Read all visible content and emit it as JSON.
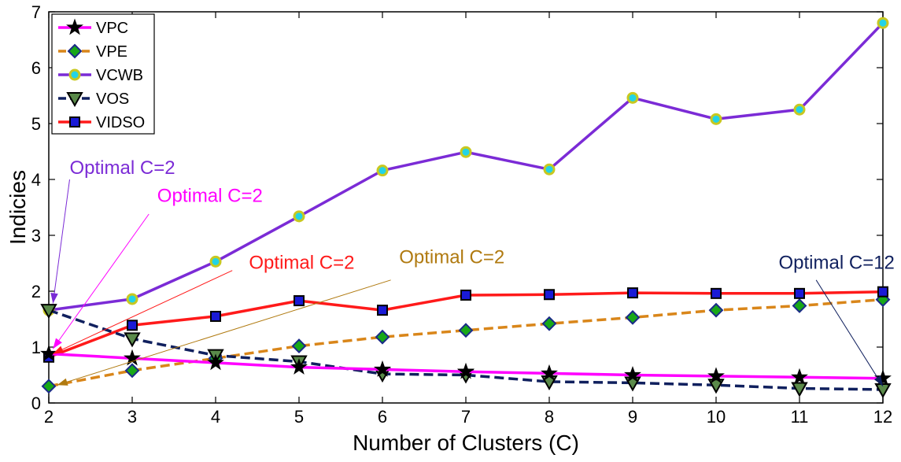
{
  "chart_data": {
    "type": "line",
    "xlabel": "Number of Clusters (C)",
    "ylabel": "Indicies",
    "xlim": [
      2,
      12
    ],
    "ylim": [
      0,
      7
    ],
    "x_ticks": [
      "2",
      "3",
      "4",
      "5",
      "6",
      "7",
      "8",
      "9",
      "10",
      "11",
      "12"
    ],
    "y_ticks": [
      "0",
      "1",
      "2",
      "3",
      "4",
      "5",
      "6",
      "7"
    ],
    "legend_position": "top-left",
    "grid": false,
    "x": [
      2,
      3,
      4,
      5,
      6,
      7,
      8,
      9,
      10,
      11,
      12
    ],
    "series": [
      {
        "name": "VPC",
        "color": "#ff00ff",
        "line_style": "solid",
        "marker": "star",
        "marker_fill": "#000000",
        "marker_stroke": "#000000",
        "values": [
          0.88,
          0.8,
          0.72,
          0.64,
          0.6,
          0.56,
          0.53,
          0.5,
          0.48,
          0.46,
          0.44
        ]
      },
      {
        "name": "VPE",
        "color": "#d9861a",
        "line_style": "dashed",
        "marker": "diamond",
        "marker_fill": "#18a818",
        "marker_stroke": "#1a2a88",
        "values": [
          0.3,
          0.58,
          0.8,
          1.02,
          1.18,
          1.3,
          1.42,
          1.53,
          1.66,
          1.74,
          1.85
        ]
      },
      {
        "name": "VCWB",
        "color": "#7b2bd6",
        "line_style": "solid",
        "marker": "circle",
        "marker_fill": "#22d4e6",
        "marker_stroke": "#c8c820",
        "values": [
          1.66,
          1.86,
          2.53,
          3.34,
          4.16,
          4.49,
          4.18,
          5.46,
          5.08,
          5.25,
          6.8
        ]
      },
      {
        "name": "VOS",
        "color": "#10205e",
        "line_style": "dashed",
        "marker": "triangle-down",
        "marker_fill": "#5a8a4a",
        "marker_stroke": "#000000",
        "values": [
          1.66,
          1.15,
          0.85,
          0.74,
          0.52,
          0.5,
          0.38,
          0.36,
          0.32,
          0.26,
          0.24
        ]
      },
      {
        "name": "VIDSO",
        "color": "#ff1a1a",
        "line_style": "solid",
        "marker": "square",
        "marker_fill": "#1a1ad6",
        "marker_stroke": "#000000",
        "values": [
          0.82,
          1.39,
          1.55,
          1.83,
          1.66,
          1.93,
          1.94,
          1.97,
          1.96,
          1.96,
          1.99
        ]
      }
    ],
    "annotations": [
      {
        "text": "Optimal C=2",
        "color": "#7b2bd6",
        "label_at": [
          2.25,
          4.1
        ],
        "anchor": [
          2.25,
          4.0
        ],
        "point": [
          2.05,
          1.78
        ]
      },
      {
        "text": "Optimal C=2",
        "color": "#ff00ff",
        "label_at": [
          3.3,
          3.6
        ],
        "anchor": [
          3.2,
          3.38
        ],
        "point": [
          2.05,
          0.97
        ]
      },
      {
        "text": "Optimal C=2",
        "color": "#ff1a1a",
        "label_at": [
          4.4,
          2.4
        ],
        "anchor": [
          4.2,
          2.37
        ],
        "point": [
          2.05,
          0.88
        ]
      },
      {
        "text": "Optimal C=2",
        "color": "#b07a10",
        "label_at": [
          6.2,
          2.5
        ],
        "anchor": [
          6.1,
          2.2
        ],
        "point": [
          2.1,
          0.32
        ]
      },
      {
        "text": "Optimal C=12",
        "color": "#10205e",
        "label_at": [
          10.75,
          2.4
        ],
        "anchor": [
          11.2,
          2.2
        ],
        "point": [
          12.0,
          0.3
        ]
      }
    ]
  }
}
